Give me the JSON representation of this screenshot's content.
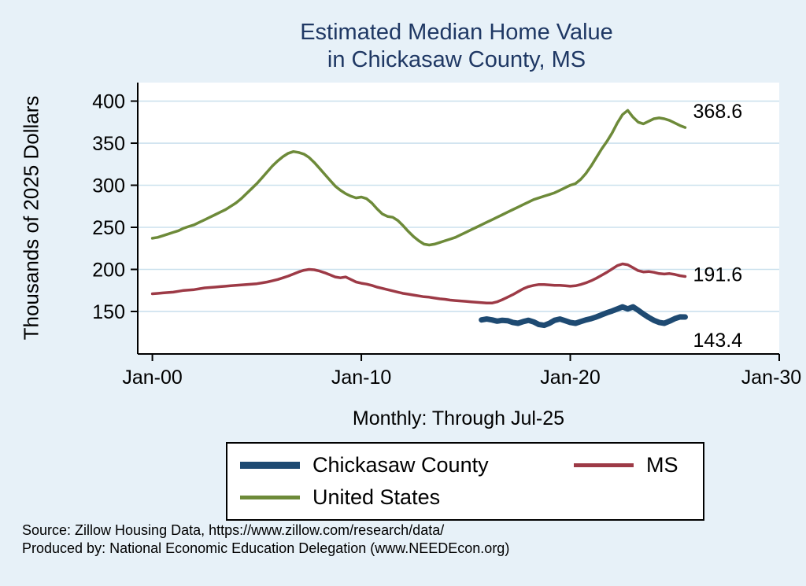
{
  "title": {
    "line1": "Estimated Median Home Value",
    "line2": "in Chickasaw County, MS"
  },
  "footer": {
    "line1": "Source: Zillow Housing Data, https://www.zillow.com/research/data/",
    "line2": "Produced by: National Economic Education Delegation (www.NEEDEcon.org)"
  },
  "colors": {
    "background": "#e7f1f8",
    "plot_bg": "#ffffff",
    "grid": "#cbe1ee",
    "title": "#1f3864",
    "axis": "#000000",
    "navy": "#1e4a72",
    "maroon": "#9d3a46",
    "olive": "#6d8a39"
  },
  "chart_data": {
    "type": "line",
    "title": "Estimated Median Home Value in Chickasaw County, MS",
    "title_lines": [
      "Estimated Median Home Value",
      "in Chickasaw County, MS"
    ],
    "xlabel": "Monthly: Through Jul-25",
    "ylabel": "Thousands of 2025 Dollars",
    "xlim": [
      1999.3,
      2030
    ],
    "ylim": [
      99.5,
      422
    ],
    "grid": true,
    "legend_position": "bottom",
    "x_ticks": [
      {
        "value": 2000,
        "label": "Jan-00"
      },
      {
        "value": 2010,
        "label": "Jan-10"
      },
      {
        "value": 2020,
        "label": "Jan-20"
      },
      {
        "value": 2030,
        "label": "Jan-30"
      }
    ],
    "y_ticks": [
      150,
      200,
      250,
      300,
      350,
      400
    ],
    "series": [
      {
        "name": "Chickasaw County",
        "color": "#1e4a72",
        "line_width": 7,
        "end_label": "143.4",
        "x_start": 2015.75,
        "x_step": 0.25,
        "values": [
          140,
          141,
          140,
          138.5,
          139.5,
          139,
          137,
          136,
          138,
          139.5,
          137.5,
          134.5,
          133.5,
          136,
          139.5,
          141,
          139,
          137,
          136,
          138,
          140,
          141.5,
          143.5,
          146,
          148.5,
          150.5,
          153,
          155.5,
          153,
          155.5,
          151.5,
          147,
          143,
          139.5,
          137,
          136,
          138.5,
          141.5,
          143.5,
          143.4
        ]
      },
      {
        "name": "MS",
        "color": "#9d3a46",
        "line_width": 3.5,
        "end_label": "191.6",
        "x_start": 2000,
        "x_step": 0.25,
        "values": [
          171,
          171.5,
          172,
          172.5,
          173,
          174,
          175,
          175.5,
          176,
          177,
          178,
          178.5,
          179,
          179.5,
          180,
          180.5,
          181,
          181.5,
          182,
          182.5,
          183,
          184,
          185,
          186.5,
          188,
          190,
          192,
          194.5,
          197,
          199,
          200,
          199.5,
          198,
          196,
          193.5,
          191,
          190,
          191,
          188,
          185,
          183.5,
          182.5,
          181,
          179,
          177.5,
          176,
          174.5,
          173,
          171.5,
          170.5,
          169.5,
          168.5,
          167.5,
          167,
          166,
          165,
          164.5,
          163.5,
          163,
          162.5,
          162,
          161.5,
          161,
          160.5,
          160,
          160,
          161.5,
          164,
          167,
          170,
          173.5,
          177,
          179.5,
          181,
          182,
          182,
          181.5,
          181,
          181,
          180.5,
          180,
          180.5,
          182,
          184,
          186.5,
          189.5,
          193,
          196.5,
          200.5,
          204.5,
          206.5,
          205.5,
          202,
          198.5,
          197,
          197.5,
          196.5,
          195,
          194.5,
          195,
          194,
          192.5,
          191.6
        ]
      },
      {
        "name": "United States",
        "color": "#6d8a39",
        "line_width": 3.5,
        "end_label": "368.6",
        "x_start": 2000,
        "x_step": 0.25,
        "values": [
          237,
          238,
          240,
          242,
          244,
          246,
          249,
          251,
          253,
          256,
          259,
          262,
          265,
          268,
          271,
          275,
          279,
          284,
          290,
          296,
          302,
          309,
          316,
          323,
          329,
          334,
          338,
          340,
          339,
          337,
          333,
          327,
          320,
          313,
          306,
          299,
          294,
          290,
          287,
          285,
          286,
          284,
          279,
          272,
          266,
          263,
          262,
          258,
          252,
          245,
          239,
          234,
          230,
          229,
          230,
          232,
          234,
          236,
          238,
          241,
          244,
          247,
          250,
          253,
          256,
          259,
          262,
          265,
          268,
          271,
          274,
          277,
          280,
          283,
          285,
          287,
          289,
          291,
          294,
          297,
          300,
          302,
          307,
          314,
          323,
          333,
          343,
          352,
          362,
          374,
          384,
          389,
          381,
          375,
          373,
          376,
          379,
          380,
          379,
          377,
          374,
          371,
          368.6
        ]
      }
    ]
  }
}
